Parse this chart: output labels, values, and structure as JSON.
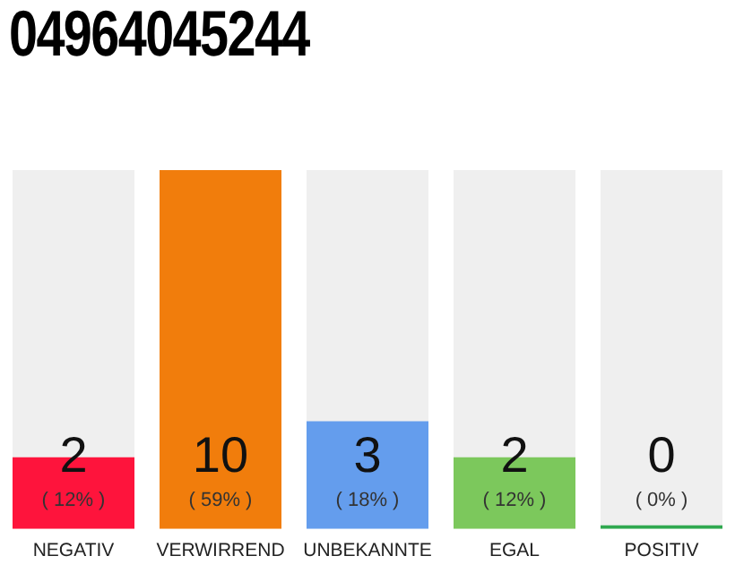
{
  "chart_data": {
    "type": "bar",
    "title": "04964045244",
    "categories": [
      "NEGATIV",
      "VERWIRREND",
      "UNBEKANNTE",
      "EGAL",
      "POSITIV"
    ],
    "values": [
      2,
      10,
      3,
      2,
      0
    ],
    "colors": [
      "#fe143c",
      "#f17d0c",
      "#649ded",
      "#7cc85c",
      "#2fa84f"
    ],
    "data_labels": true,
    "annotations": [
      "( 12% )",
      "( 59% )",
      "( 18% )",
      "( 12% )",
      "( 0% )"
    ],
    "grid": false,
    "legend": false
  }
}
